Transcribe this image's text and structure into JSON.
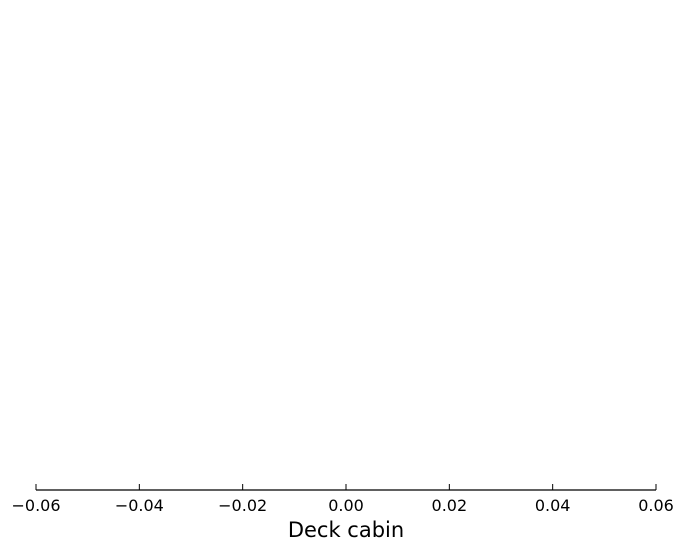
{
  "chart_data": {
    "type": "line",
    "title": "",
    "xlabel": "Deck cabin",
    "ylabel": "",
    "xlim": [
      -0.06,
      0.06
    ],
    "xticks": [
      -0.06,
      -0.04,
      -0.02,
      0.0,
      0.02,
      0.04,
      0.06
    ],
    "xtick_labels": [
      "−0.06",
      "−0.04",
      "−0.02",
      "0.00",
      "0.02",
      "0.04",
      "0.06"
    ],
    "series": [],
    "grid": false,
    "legend": "none",
    "colors": {
      "axis": "#000000",
      "background": "#ffffff"
    }
  }
}
